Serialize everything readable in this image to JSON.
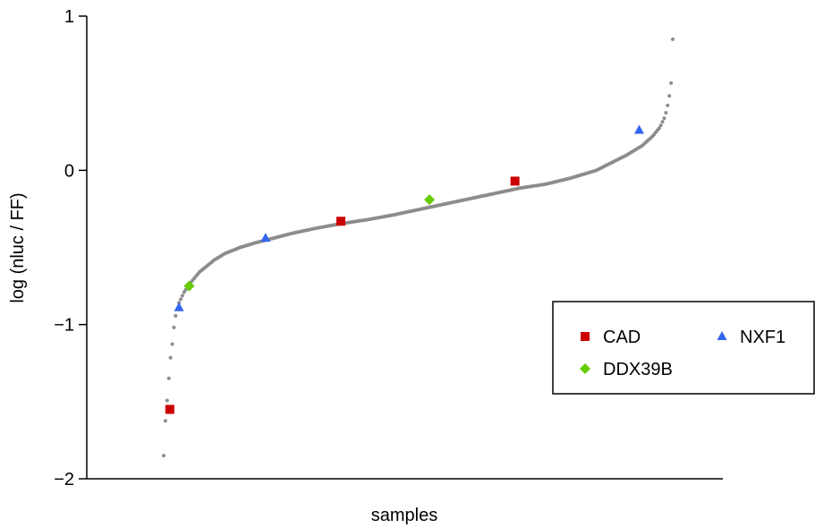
{
  "chart_data": {
    "type": "scatter",
    "title": "",
    "xlabel": "samples",
    "ylabel": "log (nluc / FF)",
    "ylim": [
      -2,
      1
    ],
    "yticks": [
      {
        "value": 1,
        "label": "1"
      },
      {
        "value": 0,
        "label": "0"
      },
      {
        "value": -1,
        "label": "−1"
      },
      {
        "value": -2,
        "label": "−2"
      }
    ],
    "x_ticks_shown": false,
    "grid": false,
    "legend_position": "right",
    "background_series": {
      "color": "#8c8c8c",
      "curve": [
        [
          0.0,
          -1.85
        ],
        [
          0.004,
          -1.58
        ],
        [
          0.008,
          -1.45
        ],
        [
          0.012,
          -1.25
        ],
        [
          0.016,
          -1.15
        ],
        [
          0.02,
          -1.02
        ],
        [
          0.024,
          -0.93
        ],
        [
          0.03,
          -0.86
        ],
        [
          0.04,
          -0.79
        ],
        [
          0.05,
          -0.74
        ],
        [
          0.06,
          -0.7
        ],
        [
          0.07,
          -0.66
        ],
        [
          0.085,
          -0.62
        ],
        [
          0.1,
          -0.58
        ],
        [
          0.12,
          -0.54
        ],
        [
          0.15,
          -0.5
        ],
        [
          0.18,
          -0.47
        ],
        [
          0.21,
          -0.445
        ],
        [
          0.25,
          -0.41
        ],
        [
          0.3,
          -0.375
        ],
        [
          0.35,
          -0.345
        ],
        [
          0.4,
          -0.32
        ],
        [
          0.45,
          -0.29
        ],
        [
          0.5,
          -0.255
        ],
        [
          0.55,
          -0.22
        ],
        [
          0.6,
          -0.185
        ],
        [
          0.65,
          -0.15
        ],
        [
          0.7,
          -0.115
        ],
        [
          0.75,
          -0.09
        ],
        [
          0.8,
          -0.05
        ],
        [
          0.85,
          0.0
        ],
        [
          0.88,
          0.05
        ],
        [
          0.91,
          0.1
        ],
        [
          0.94,
          0.16
        ],
        [
          0.96,
          0.22
        ],
        [
          0.975,
          0.28
        ],
        [
          0.985,
          0.35
        ],
        [
          0.992,
          0.45
        ],
        [
          0.996,
          0.55
        ],
        [
          0.999,
          0.62
        ],
        [
          1.0,
          0.85
        ]
      ]
    },
    "series": [
      {
        "name": "CAD",
        "color": "#cc0000",
        "marker": "square",
        "points": [
          [
            0.012,
            -1.55
          ],
          [
            0.348,
            -0.33
          ],
          [
            0.69,
            -0.07
          ]
        ]
      },
      {
        "name": "NXF1",
        "color": "#3366ee",
        "marker": "triangle",
        "points": [
          [
            0.03,
            -0.89
          ],
          [
            0.2,
            -0.44
          ],
          [
            0.934,
            0.26
          ]
        ]
      },
      {
        "name": "DDX39B",
        "color": "#66cc00",
        "marker": "diamond",
        "points": [
          [
            0.05,
            -0.75
          ],
          [
            0.522,
            -0.19
          ]
        ]
      }
    ]
  }
}
